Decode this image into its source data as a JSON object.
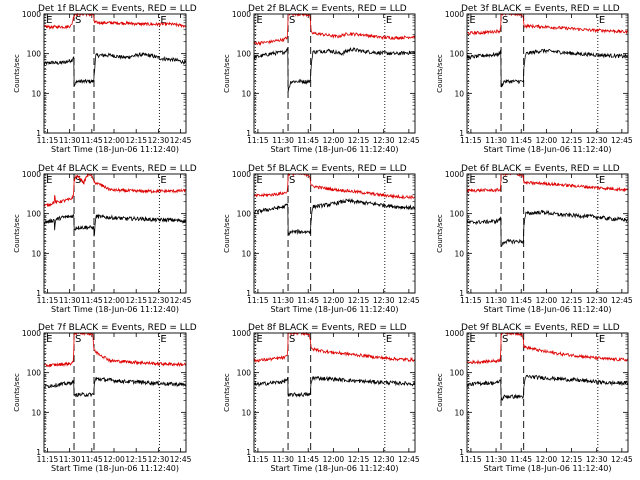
{
  "chart_data": {
    "type": "line",
    "layout": "3x3 grid of panels",
    "colors": {
      "events": "#000000",
      "lld": "#dd0000"
    },
    "y_scale": "log",
    "ylim": [
      1,
      1000
    ],
    "y_ticks": [
      "1",
      "10",
      "100",
      "1000"
    ],
    "ylabel": "Counts/sec",
    "xlabel": "Start Time (18-Jun-06 11:12:40)",
    "x_range_min": [
      0,
      96
    ],
    "x_tick_labels": [
      "11:15",
      "11:30",
      "11:45",
      "12:00",
      "12:15",
      "12:30",
      "12:45"
    ],
    "x_tick_min": [
      2.33,
      17.33,
      32.33,
      47.33,
      62.33,
      77.33,
      92.33
    ],
    "markers": [
      {
        "label": "E",
        "x_min": 0.8,
        "style": "dotted"
      },
      {
        "label": "S",
        "x_min": 20.3,
        "style": "dashed"
      },
      {
        "label": "",
        "x_min": 33.8,
        "style": "dashed"
      },
      {
        "label": "E",
        "x_min": 78.0,
        "style": "dotted"
      }
    ],
    "panels": [
      {
        "title": "Det 1f BLACK = Events, RED = LLD",
        "red_pts": [
          [
            0,
            480
          ],
          [
            5,
            470
          ],
          [
            10,
            480
          ],
          [
            15,
            475
          ],
          [
            18.5,
            510
          ],
          [
            20.3,
            900
          ],
          [
            21,
            1000
          ],
          [
            28,
            1000
          ],
          [
            32,
            950
          ],
          [
            33.5,
            980
          ],
          [
            34,
            620
          ],
          [
            36,
            610
          ],
          [
            45,
            600
          ],
          [
            55,
            590
          ],
          [
            65,
            560
          ],
          [
            75,
            550
          ],
          [
            85,
            560
          ],
          [
            96,
            500
          ]
        ],
        "black_pts": [
          [
            0,
            55
          ],
          [
            5,
            60
          ],
          [
            10,
            58
          ],
          [
            15,
            62
          ],
          [
            19,
            70
          ],
          [
            20.2,
            90
          ],
          [
            20.4,
            15
          ],
          [
            22,
            20
          ],
          [
            33.7,
            20
          ],
          [
            33.9,
            30
          ],
          [
            35,
            90
          ],
          [
            45,
            92
          ],
          [
            50,
            85
          ],
          [
            55,
            80
          ],
          [
            65,
            95
          ],
          [
            72,
            90
          ],
          [
            80,
            75
          ],
          [
            88,
            70
          ],
          [
            96,
            60
          ]
        ]
      },
      {
        "title": "Det 2f BLACK = Events, RED = LLD",
        "red_pts": [
          [
            0,
            180
          ],
          [
            10,
            200
          ],
          [
            18,
            230
          ],
          [
            20,
            260
          ],
          [
            20.3,
            1000
          ],
          [
            28,
            1000
          ],
          [
            33,
            950
          ],
          [
            33.7,
            700
          ],
          [
            34,
            330
          ],
          [
            40,
            310
          ],
          [
            50,
            270
          ],
          [
            56,
            320
          ],
          [
            65,
            300
          ],
          [
            75,
            260
          ],
          [
            85,
            250
          ],
          [
            96,
            270
          ]
        ],
        "black_pts": [
          [
            0,
            80
          ],
          [
            10,
            100
          ],
          [
            18,
            110
          ],
          [
            20,
            130
          ],
          [
            20.3,
            140
          ],
          [
            20.4,
            12
          ],
          [
            22,
            20
          ],
          [
            33.7,
            20
          ],
          [
            33.9,
            40
          ],
          [
            35,
            110
          ],
          [
            45,
            120
          ],
          [
            52,
            100
          ],
          [
            58,
            130
          ],
          [
            65,
            115
          ],
          [
            75,
            105
          ],
          [
            85,
            100
          ],
          [
            96,
            110
          ]
        ]
      },
      {
        "title": "Det 3f BLACK = Events, RED = LLD",
        "red_pts": [
          [
            0,
            330
          ],
          [
            10,
            340
          ],
          [
            18,
            370
          ],
          [
            20,
            380
          ],
          [
            20.3,
            1000
          ],
          [
            27,
            1000
          ],
          [
            33,
            960
          ],
          [
            33.7,
            720
          ],
          [
            34,
            500
          ],
          [
            45,
            480
          ],
          [
            55,
            450
          ],
          [
            65,
            420
          ],
          [
            75,
            390
          ],
          [
            85,
            380
          ],
          [
            96,
            350
          ]
        ],
        "black_pts": [
          [
            0,
            80
          ],
          [
            10,
            90
          ],
          [
            18,
            95
          ],
          [
            20,
            110
          ],
          [
            20.3,
            130
          ],
          [
            20.4,
            15
          ],
          [
            22,
            20
          ],
          [
            33.7,
            20
          ],
          [
            33.9,
            40
          ],
          [
            35,
            100
          ],
          [
            45,
            120
          ],
          [
            55,
            110
          ],
          [
            65,
            100
          ],
          [
            75,
            95
          ],
          [
            85,
            90
          ],
          [
            96,
            85
          ]
        ]
      },
      {
        "title": "Det 4f BLACK = Events, RED = LLD",
        "red_pts": [
          [
            0,
            160
          ],
          [
            4,
            170
          ],
          [
            6,
            190
          ],
          [
            7,
            190
          ],
          [
            7.3,
            400
          ],
          [
            7.6,
            190
          ],
          [
            10,
            200
          ],
          [
            18,
            230
          ],
          [
            20,
            280
          ],
          [
            20.3,
            700
          ],
          [
            22,
            900
          ],
          [
            24,
            800
          ],
          [
            27,
            600
          ],
          [
            29,
            900
          ],
          [
            31,
            1000
          ],
          [
            33,
            800
          ],
          [
            33.7,
            600
          ],
          [
            34,
            620
          ],
          [
            40,
            500
          ],
          [
            45,
            400
          ],
          [
            55,
            380
          ],
          [
            65,
            370
          ],
          [
            75,
            370
          ],
          [
            85,
            370
          ],
          [
            96,
            380
          ]
        ],
        "black_pts": [
          [
            0,
            60
          ],
          [
            4,
            65
          ],
          [
            7,
            70
          ],
          [
            7.3,
            30
          ],
          [
            7.6,
            70
          ],
          [
            12,
            80
          ],
          [
            18,
            85
          ],
          [
            20,
            90
          ],
          [
            20.3,
            95
          ],
          [
            20.4,
            40
          ],
          [
            22,
            45
          ],
          [
            33.7,
            45
          ],
          [
            33.9,
            25
          ],
          [
            35,
            85
          ],
          [
            45,
            80
          ],
          [
            55,
            75
          ],
          [
            65,
            75
          ],
          [
            75,
            70
          ],
          [
            85,
            70
          ],
          [
            96,
            65
          ]
        ]
      },
      {
        "title": "Det 5f BLACK = Events, RED = LLD",
        "red_pts": [
          [
            0,
            280
          ],
          [
            10,
            300
          ],
          [
            18,
            330
          ],
          [
            20,
            360
          ],
          [
            20.3,
            1000
          ],
          [
            28,
            1000
          ],
          [
            33,
            950
          ],
          [
            33.7,
            700
          ],
          [
            34,
            500
          ],
          [
            45,
            420
          ],
          [
            55,
            380
          ],
          [
            65,
            340
          ],
          [
            75,
            300
          ],
          [
            85,
            270
          ],
          [
            96,
            260
          ]
        ],
        "black_pts": [
          [
            0,
            110
          ],
          [
            10,
            130
          ],
          [
            18,
            150
          ],
          [
            20,
            170
          ],
          [
            20.3,
            190
          ],
          [
            20.4,
            30
          ],
          [
            22,
            35
          ],
          [
            33.7,
            35
          ],
          [
            33.9,
            60
          ],
          [
            35,
            150
          ],
          [
            45,
            170
          ],
          [
            55,
            210
          ],
          [
            65,
            190
          ],
          [
            75,
            170
          ],
          [
            85,
            150
          ],
          [
            96,
            140
          ]
        ]
      },
      {
        "title": "Det 6f BLACK = Events, RED = LLD",
        "red_pts": [
          [
            0,
            380
          ],
          [
            10,
            390
          ],
          [
            18,
            390
          ],
          [
            20,
            400
          ],
          [
            20.3,
            1000
          ],
          [
            27,
            1000
          ],
          [
            33,
            960
          ],
          [
            33.7,
            800
          ],
          [
            34,
            600
          ],
          [
            45,
            580
          ],
          [
            55,
            540
          ],
          [
            65,
            500
          ],
          [
            75,
            460
          ],
          [
            85,
            430
          ],
          [
            96,
            400
          ]
        ],
        "black_pts": [
          [
            0,
            60
          ],
          [
            10,
            62
          ],
          [
            18,
            65
          ],
          [
            20,
            75
          ],
          [
            20.3,
            80
          ],
          [
            20.4,
            15
          ],
          [
            22,
            20
          ],
          [
            33.7,
            20
          ],
          [
            33.9,
            50
          ],
          [
            35,
            100
          ],
          [
            45,
            110
          ],
          [
            55,
            95
          ],
          [
            65,
            90
          ],
          [
            75,
            85
          ],
          [
            85,
            75
          ],
          [
            96,
            70
          ]
        ]
      },
      {
        "title": "Det 7f BLACK = Events, RED = LLD",
        "red_pts": [
          [
            0,
            150
          ],
          [
            10,
            160
          ],
          [
            18,
            170
          ],
          [
            20,
            190
          ],
          [
            20.3,
            1000
          ],
          [
            28,
            1000
          ],
          [
            33,
            950
          ],
          [
            33.7,
            400
          ],
          [
            34,
            350
          ],
          [
            45,
            200
          ],
          [
            55,
            190
          ],
          [
            65,
            180
          ],
          [
            75,
            170
          ],
          [
            85,
            165
          ],
          [
            96,
            160
          ]
        ],
        "black_pts": [
          [
            0,
            45
          ],
          [
            10,
            50
          ],
          [
            18,
            55
          ],
          [
            20,
            60
          ],
          [
            20.3,
            65
          ],
          [
            20.4,
            25
          ],
          [
            22,
            28
          ],
          [
            33.7,
            28
          ],
          [
            33.9,
            50
          ],
          [
            35,
            70
          ],
          [
            45,
            65
          ],
          [
            55,
            60
          ],
          [
            65,
            58
          ],
          [
            75,
            55
          ],
          [
            85,
            52
          ],
          [
            96,
            50
          ]
        ]
      },
      {
        "title": "Det 8f BLACK = Events, RED = LLD",
        "red_pts": [
          [
            0,
            200
          ],
          [
            10,
            220
          ],
          [
            18,
            240
          ],
          [
            20,
            260
          ],
          [
            20.3,
            1000
          ],
          [
            28,
            1000
          ],
          [
            33,
            950
          ],
          [
            33.7,
            600
          ],
          [
            34,
            400
          ],
          [
            45,
            330
          ],
          [
            55,
            300
          ],
          [
            65,
            270
          ],
          [
            75,
            240
          ],
          [
            85,
            220
          ],
          [
            96,
            210
          ]
        ],
        "black_pts": [
          [
            0,
            50
          ],
          [
            10,
            55
          ],
          [
            18,
            60
          ],
          [
            20,
            70
          ],
          [
            20.3,
            75
          ],
          [
            20.4,
            25
          ],
          [
            22,
            28
          ],
          [
            33.7,
            28
          ],
          [
            33.9,
            50
          ],
          [
            35,
            75
          ],
          [
            45,
            70
          ],
          [
            55,
            65
          ],
          [
            65,
            60
          ],
          [
            75,
            58
          ],
          [
            85,
            55
          ],
          [
            96,
            52
          ]
        ]
      },
      {
        "title": "Det 9f BLACK = Events, RED = LLD",
        "red_pts": [
          [
            0,
            180
          ],
          [
            10,
            190
          ],
          [
            18,
            200
          ],
          [
            20,
            210
          ],
          [
            20.3,
            1000
          ],
          [
            27,
            1000
          ],
          [
            33,
            950
          ],
          [
            33.7,
            600
          ],
          [
            34,
            450
          ],
          [
            45,
            350
          ],
          [
            55,
            300
          ],
          [
            65,
            270
          ],
          [
            75,
            240
          ],
          [
            85,
            220
          ],
          [
            96,
            210
          ]
        ],
        "black_pts": [
          [
            0,
            50
          ],
          [
            10,
            55
          ],
          [
            18,
            55
          ],
          [
            20,
            65
          ],
          [
            20.3,
            70
          ],
          [
            20.4,
            20
          ],
          [
            22,
            25
          ],
          [
            33.7,
            25
          ],
          [
            33.9,
            40
          ],
          [
            35,
            80
          ],
          [
            45,
            75
          ],
          [
            55,
            70
          ],
          [
            65,
            65
          ],
          [
            75,
            60
          ],
          [
            85,
            55
          ],
          [
            96,
            55
          ]
        ]
      }
    ]
  }
}
